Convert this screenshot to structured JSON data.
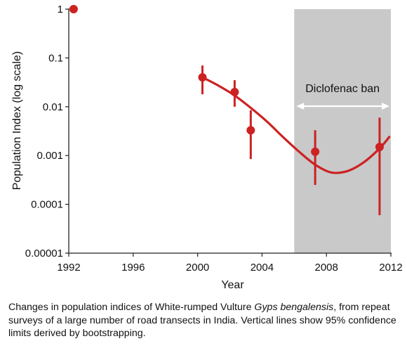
{
  "chart_data": {
    "type": "scatter",
    "title": "",
    "xlabel": "Year",
    "ylabel": "Population Index  (log scale)",
    "xlim": [
      1992,
      2012
    ],
    "ylim": [
      1e-05,
      1
    ],
    "y_scale": "log",
    "grid": false,
    "x_ticks": [
      1992,
      1996,
      2000,
      2004,
      2008,
      2012
    ],
    "y_ticks": [
      {
        "value": 1,
        "label": "1"
      },
      {
        "value": 0.1,
        "label": "0.1"
      },
      {
        "value": 0.01,
        "label": "0.01"
      },
      {
        "value": 0.001,
        "label": "0.001"
      },
      {
        "value": 0.0001,
        "label": "0.0001"
      },
      {
        "value": 1e-05,
        "label": "0.00001"
      }
    ],
    "points": [
      {
        "x": 1992.3,
        "y": 1
      },
      {
        "x": 2000.3,
        "y": 0.04,
        "lower": 0.018,
        "upper": 0.07
      },
      {
        "x": 2002.3,
        "y": 0.02,
        "lower": 0.01,
        "upper": 0.035
      },
      {
        "x": 2003.3,
        "y": 0.0033,
        "lower": 0.00085,
        "upper": 0.0085
      },
      {
        "x": 2007.3,
        "y": 0.0012,
        "lower": 0.00025,
        "upper": 0.0033
      },
      {
        "x": 2011.3,
        "y": 0.0015,
        "lower": 6e-05,
        "upper": 0.006
      }
    ],
    "trend": [
      {
        "x": 2000.3,
        "y": 0.04
      },
      {
        "x": 2001.3,
        "y": 0.027
      },
      {
        "x": 2002.3,
        "y": 0.017
      },
      {
        "x": 2003.3,
        "y": 0.0095
      },
      {
        "x": 2004.3,
        "y": 0.005
      },
      {
        "x": 2005.3,
        "y": 0.0024
      },
      {
        "x": 2006.3,
        "y": 0.0012
      },
      {
        "x": 2007.3,
        "y": 0.00065
      },
      {
        "x": 2008.3,
        "y": 0.00045
      },
      {
        "x": 2009.3,
        "y": 0.00048
      },
      {
        "x": 2010.3,
        "y": 0.00072
      },
      {
        "x": 2011.3,
        "y": 0.0014
      },
      {
        "x": 2011.9,
        "y": 0.0024
      }
    ],
    "shaded_region": {
      "x_start": 2006,
      "x_end": 2012,
      "label": "Diclofenac ban"
    },
    "colors": {
      "series": "#cc2222",
      "shade": "#c9c9c9",
      "arrow": "#ffffff",
      "axis": "#222222"
    }
  },
  "caption": {
    "before_species": "Changes in population indices of White-rumped Vulture ",
    "species": "Gyps bengalensis",
    "after_species": ", from repeat surveys of a large number of road transects in India. Vertical lines show 95% confidence limits derived by bootstrapping."
  }
}
